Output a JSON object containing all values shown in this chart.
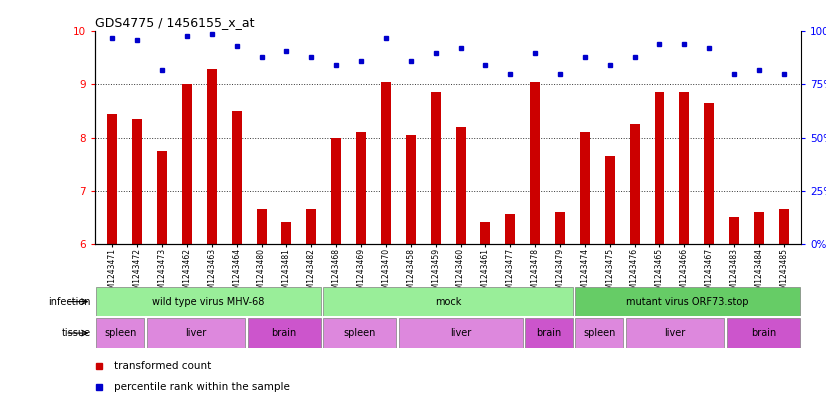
{
  "title": "GDS4775 / 1456155_x_at",
  "samples": [
    "GSM1243471",
    "GSM1243472",
    "GSM1243473",
    "GSM1243462",
    "GSM1243463",
    "GSM1243464",
    "GSM1243480",
    "GSM1243481",
    "GSM1243482",
    "GSM1243468",
    "GSM1243469",
    "GSM1243470",
    "GSM1243458",
    "GSM1243459",
    "GSM1243460",
    "GSM1243461",
    "GSM1243477",
    "GSM1243478",
    "GSM1243479",
    "GSM1243474",
    "GSM1243475",
    "GSM1243476",
    "GSM1243465",
    "GSM1243466",
    "GSM1243467",
    "GSM1243483",
    "GSM1243484",
    "GSM1243485"
  ],
  "transformed_count": [
    8.45,
    8.35,
    7.75,
    9.0,
    9.3,
    8.5,
    6.65,
    6.4,
    6.65,
    8.0,
    8.1,
    9.05,
    8.05,
    8.85,
    8.2,
    6.4,
    6.55,
    9.05,
    6.6,
    8.1,
    7.65,
    8.25,
    8.85,
    8.85,
    8.65,
    6.5,
    6.6,
    6.65
  ],
  "percentile_rank": [
    97,
    96,
    82,
    98,
    99,
    93,
    88,
    91,
    88,
    84,
    86,
    97,
    86,
    90,
    92,
    84,
    80,
    90,
    80,
    88,
    84,
    88,
    94,
    94,
    92,
    80,
    82,
    80
  ],
  "bar_color": "#cc0000",
  "dot_color": "#0000cc",
  "ylim_left": [
    6,
    10
  ],
  "ylim_right": [
    0,
    100
  ],
  "yticks_left": [
    6,
    7,
    8,
    9,
    10
  ],
  "yticks_right": [
    0,
    25,
    50,
    75,
    100
  ],
  "background_color": "#ffffff",
  "bar_bottom": 6.0,
  "bar_width": 0.5,
  "infection_groups": [
    {
      "label": "wild type virus MHV-68",
      "start": 0,
      "end": 9,
      "color": "#99ee99"
    },
    {
      "label": "mock",
      "start": 9,
      "end": 19,
      "color": "#99ee99"
    },
    {
      "label": "mutant virus ORF73.stop",
      "start": 19,
      "end": 28,
      "color": "#66cc66"
    }
  ],
  "tissue_groups": [
    {
      "label": "spleen",
      "start": 0,
      "end": 2,
      "color": "#dd88dd"
    },
    {
      "label": "liver",
      "start": 2,
      "end": 6,
      "color": "#dd88dd"
    },
    {
      "label": "brain",
      "start": 6,
      "end": 9,
      "color": "#cc55cc"
    },
    {
      "label": "spleen",
      "start": 9,
      "end": 12,
      "color": "#dd88dd"
    },
    {
      "label": "liver",
      "start": 12,
      "end": 17,
      "color": "#dd88dd"
    },
    {
      "label": "brain",
      "start": 17,
      "end": 19,
      "color": "#cc55cc"
    },
    {
      "label": "spleen",
      "start": 19,
      "end": 21,
      "color": "#dd88dd"
    },
    {
      "label": "liver",
      "start": 21,
      "end": 25,
      "color": "#dd88dd"
    },
    {
      "label": "brain",
      "start": 25,
      "end": 28,
      "color": "#cc55cc"
    }
  ]
}
